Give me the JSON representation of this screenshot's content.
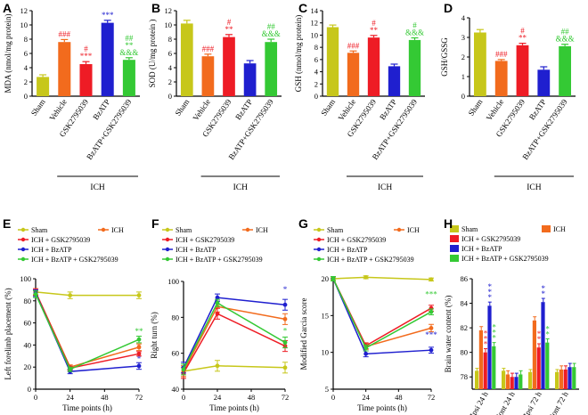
{
  "chart_data": [
    {
      "panel": "A",
      "type": "bar",
      "ylabel": "MDA (nmol/mg protein)",
      "categories": [
        "Sham",
        "Vehicle",
        "GSK2795039",
        "BzATP",
        "BzATP+GSK2795039"
      ],
      "colors": [
        "#c7c71a",
        "#f26b1d",
        "#ee1c25",
        "#1f1fcf",
        "#34c934"
      ],
      "values": [
        2.7,
        7.6,
        4.5,
        10.3,
        5.1
      ],
      "errors": [
        0.3,
        0.35,
        0.35,
        0.35,
        0.3
      ],
      "ylim": [
        0,
        12
      ],
      "yticks": [
        0,
        2,
        4,
        6,
        8,
        10,
        12
      ],
      "group_label": "ICH",
      "annotations": [
        [],
        [
          "###"
        ],
        [
          "#",
          "***"
        ],
        [
          "***"
        ],
        [
          "##",
          "**",
          "&&&"
        ]
      ],
      "annotation_colors": [
        [],
        [
          "#ee1c25"
        ],
        [
          "#ee1c25",
          "#ee1c25"
        ],
        [
          "#1f1fcf"
        ],
        [
          "#34c934",
          "#34c934",
          "#34c934"
        ]
      ]
    },
    {
      "panel": "B",
      "type": "bar",
      "ylabel": "SOD (U/mg protein )",
      "categories": [
        "Sham",
        "Vehicle",
        "GSK2795039",
        "BzATP",
        "BzATP+GSK2795039"
      ],
      "colors": [
        "#c7c71a",
        "#f26b1d",
        "#ee1c25",
        "#1f1fcf",
        "#34c934"
      ],
      "values": [
        10.2,
        5.6,
        8.3,
        4.6,
        7.6
      ],
      "errors": [
        0.45,
        0.3,
        0.35,
        0.4,
        0.4
      ],
      "ylim": [
        0,
        12
      ],
      "yticks": [
        0,
        2,
        4,
        6,
        8,
        10,
        12
      ],
      "group_label": "ICH",
      "annotations": [
        [],
        [
          "###"
        ],
        [
          "#",
          "**"
        ],
        [],
        [
          "##",
          "&&&"
        ]
      ],
      "annotation_colors": [
        [],
        [
          "#ee1c25"
        ],
        [
          "#ee1c25",
          "#ee1c25"
        ],
        [],
        [
          "#34c934",
          "#34c934"
        ]
      ]
    },
    {
      "panel": "C",
      "type": "bar",
      "ylabel": "GSH (nmol/mg protein)",
      "categories": [
        "Sham",
        "Vehicle",
        "GSK2795039",
        "BzATP",
        "BzATP+GSK2795039"
      ],
      "colors": [
        "#c7c71a",
        "#f26b1d",
        "#ee1c25",
        "#1f1fcf",
        "#34c934"
      ],
      "values": [
        11.3,
        7.1,
        9.6,
        4.9,
        9.2
      ],
      "errors": [
        0.35,
        0.3,
        0.35,
        0.35,
        0.35
      ],
      "ylim": [
        0,
        14
      ],
      "yticks": [
        0,
        2,
        4,
        6,
        8,
        10,
        12,
        14
      ],
      "group_label": "ICH",
      "annotations": [
        [],
        [
          "###"
        ],
        [
          "#",
          "**"
        ],
        [],
        [
          "#",
          "&&&"
        ]
      ],
      "annotation_colors": [
        [],
        [
          "#ee1c25"
        ],
        [
          "#ee1c25",
          "#ee1c25"
        ],
        [],
        [
          "#34c934",
          "#34c934"
        ]
      ]
    },
    {
      "panel": "D",
      "type": "bar",
      "ylabel": "GSH/GSSG",
      "categories": [
        "Sham",
        "Vehicle",
        "GSK2795039",
        "BzATP",
        "BzATP+GSK2795039"
      ],
      "colors": [
        "#c7c71a",
        "#f26b1d",
        "#ee1c25",
        "#1f1fcf",
        "#34c934"
      ],
      "values": [
        3.25,
        1.8,
        2.6,
        1.35,
        2.55
      ],
      "errors": [
        0.15,
        0.07,
        0.1,
        0.15,
        0.1
      ],
      "ylim": [
        0,
        4
      ],
      "yticks": [
        0,
        1,
        2,
        3,
        4
      ],
      "group_label": "ICH",
      "annotations": [
        [],
        [
          "###"
        ],
        [
          "#",
          "**"
        ],
        [],
        [
          "##",
          "&&&"
        ]
      ],
      "annotation_colors": [
        [],
        [
          "#ee1c25"
        ],
        [
          "#ee1c25",
          "#ee1c25"
        ],
        [],
        [
          "#34c934",
          "#34c934"
        ]
      ]
    },
    {
      "panel": "E",
      "type": "line",
      "ylabel": "Left forelimb placement (%)",
      "xlabel": "Time points (h)",
      "x": [
        0,
        24,
        72
      ],
      "xticks": [
        0,
        24,
        48,
        72
      ],
      "ylim": [
        0,
        100
      ],
      "yticks": [
        0,
        20,
        40,
        60,
        80,
        100
      ],
      "legend": [
        "Sham",
        "ICH",
        "ICH + GSK2795039",
        "ICH + BzATP",
        "ICH + BzATP + GSK2795039"
      ],
      "series": [
        {
          "name": "Sham",
          "color": "#c7c71a",
          "values": [
            88,
            85,
            85
          ],
          "errors": [
            2,
            3,
            3
          ]
        },
        {
          "name": "ICH",
          "color": "#f26b1d",
          "values": [
            88,
            20,
            38
          ],
          "errors": [
            3,
            2,
            3
          ]
        },
        {
          "name": "ICH + GSK2795039",
          "color": "#ee1c25",
          "values": [
            88,
            19,
            32
          ],
          "errors": [
            3,
            2,
            2
          ]
        },
        {
          "name": "ICH + BzATP",
          "color": "#1f1fcf",
          "values": [
            87,
            16,
            21
          ],
          "errors": [
            3,
            2,
            3
          ]
        },
        {
          "name": "ICH + BzATP + GSK2795039",
          "color": "#34c934",
          "values": [
            86,
            18,
            45
          ],
          "errors": [
            3,
            2,
            3
          ]
        }
      ],
      "annotations": [
        {
          "text": "**",
          "color": "#34c934",
          "x": 72,
          "y": 50
        },
        {
          "text": "*",
          "color": "#f26b1d",
          "x": 72,
          "y": 36
        },
        {
          "text": "*",
          "color": "#1f1fcf",
          "x": 72,
          "y": 25
        }
      ]
    },
    {
      "panel": "F",
      "type": "line",
      "ylabel": "Right turn (%)",
      "xlabel": "Time points (h)",
      "x": [
        0,
        24,
        72
      ],
      "xticks": [
        0,
        24,
        48,
        72
      ],
      "ylim": [
        40,
        100
      ],
      "yticks": [
        40,
        60,
        80,
        100
      ],
      "legend": [
        "Sham",
        "ICH",
        "ICH + GSK2795039",
        "ICH + BzATP",
        "ICH + BzATP + GSK2795039"
      ],
      "series": [
        {
          "name": "Sham",
          "color": "#c7c71a",
          "values": [
            50,
            53,
            52
          ],
          "errors": [
            3,
            3,
            3
          ]
        },
        {
          "name": "ICH",
          "color": "#f26b1d",
          "values": [
            50,
            86,
            79
          ],
          "errors": [
            3,
            3,
            3
          ]
        },
        {
          "name": "ICH + GSK2795039",
          "color": "#ee1c25",
          "values": [
            49,
            82,
            64
          ],
          "errors": [
            3,
            3,
            3
          ]
        },
        {
          "name": "ICH + BzATP",
          "color": "#1f1fcf",
          "values": [
            52,
            91,
            87
          ],
          "errors": [
            3,
            2,
            3
          ]
        },
        {
          "name": "ICH + BzATP + GSK2795039",
          "color": "#34c934",
          "values": [
            51,
            88,
            66
          ],
          "errors": [
            3,
            2,
            3
          ]
        }
      ],
      "annotations": [
        {
          "text": "*",
          "color": "#1f1fcf",
          "x": 72,
          "y": 94
        },
        {
          "text": "*",
          "color": "#34c934",
          "x": 72,
          "y": 71
        }
      ]
    },
    {
      "panel": "G",
      "type": "line",
      "ylabel": "Modified Garcia score",
      "xlabel": "Time points (h)",
      "x": [
        0,
        24,
        72
      ],
      "xticks": [
        0,
        24,
        48,
        72
      ],
      "ylim": [
        5,
        20
      ],
      "yticks": [
        5,
        10,
        15,
        20
      ],
      "legend": [
        "Sham",
        "ICH",
        "ICH + GSK2795039",
        "ICH + BzATP",
        "ICH + BzATP + GSK2795039"
      ],
      "series": [
        {
          "name": "Sham",
          "color": "#c7c71a",
          "values": [
            20,
            20.2,
            19.9
          ],
          "errors": [
            0.2,
            0.2,
            0.2
          ]
        },
        {
          "name": "ICH",
          "color": "#f26b1d",
          "values": [
            20,
            10.8,
            13.3
          ],
          "errors": [
            0.3,
            0.4,
            0.5
          ]
        },
        {
          "name": "ICH + GSK2795039",
          "color": "#ee1c25",
          "values": [
            20,
            10.9,
            16
          ],
          "errors": [
            0.3,
            0.4,
            0.4
          ]
        },
        {
          "name": "ICH + BzATP",
          "color": "#1f1fcf",
          "values": [
            20,
            9.8,
            10.3
          ],
          "errors": [
            0.3,
            0.4,
            0.4
          ]
        },
        {
          "name": "ICH + BzATP + GSK2795039",
          "color": "#34c934",
          "values": [
            20,
            10.6,
            15.5
          ],
          "errors": [
            0.3,
            0.4,
            0.4
          ]
        }
      ],
      "annotations": [
        {
          "text": "***",
          "color": "#34c934",
          "x": 72,
          "y": 17.5
        },
        {
          "text": "***",
          "color": "#1f1fcf",
          "x": 72,
          "y": 12
        }
      ]
    },
    {
      "panel": "H",
      "type": "bar",
      "ylabel": "Brain water content (%)",
      "categories": [
        "Ipsi 24 h",
        "Cont 24 h",
        "Ipsi 72 h",
        "Cont 72 h"
      ],
      "ylim": [
        77,
        86
      ],
      "yticks": [
        78,
        80,
        82,
        84,
        86
      ],
      "legend": [
        "Sham",
        "ICH",
        "ICH + GSK2795039",
        "ICH + BzATP",
        "ICH + BzATP + GSK2795039"
      ],
      "series": [
        {
          "name": "Sham",
          "color": "#c7c71a",
          "values": [
            78.5,
            78.5,
            78.4,
            78.4
          ],
          "errors": [
            0.2,
            0.2,
            0.2,
            0.2
          ]
        },
        {
          "name": "ICH",
          "color": "#f26b1d",
          "values": [
            81.8,
            78.2,
            82.6,
            78.6
          ],
          "errors": [
            0.3,
            0.3,
            0.3,
            0.3
          ]
        },
        {
          "name": "ICH + GSK2795039",
          "color": "#ee1c25",
          "values": [
            80,
            78,
            80.4,
            78.6
          ],
          "errors": [
            0.3,
            0.3,
            0.3,
            0.3
          ]
        },
        {
          "name": "ICH + BzATP",
          "color": "#1f1fcf",
          "values": [
            83.8,
            78,
            84.1,
            78.8
          ],
          "errors": [
            0.3,
            0.3,
            0.3,
            0.3
          ]
        },
        {
          "name": "ICH + BzATP + GSK2795039",
          "color": "#34c934",
          "values": [
            80.5,
            78.2,
            80.8,
            78.8
          ],
          "errors": [
            0.3,
            0.3,
            0.3,
            0.3
          ]
        }
      ],
      "annotations": [
        {
          "text": "***",
          "color": "#ee1c25",
          "group": 0,
          "series": 2
        },
        {
          "text": "***",
          "color": "#1f1fcf",
          "group": 0,
          "series": 3
        },
        {
          "text": "***",
          "color": "#34c934",
          "group": 0,
          "series": 4
        },
        {
          "text": "**",
          "color": "#ee1c25",
          "group": 2,
          "series": 2
        },
        {
          "text": "**",
          "color": "#1f1fcf",
          "group": 2,
          "series": 3
        },
        {
          "text": "**",
          "color": "#34c934",
          "group": 2,
          "series": 4
        }
      ]
    }
  ]
}
